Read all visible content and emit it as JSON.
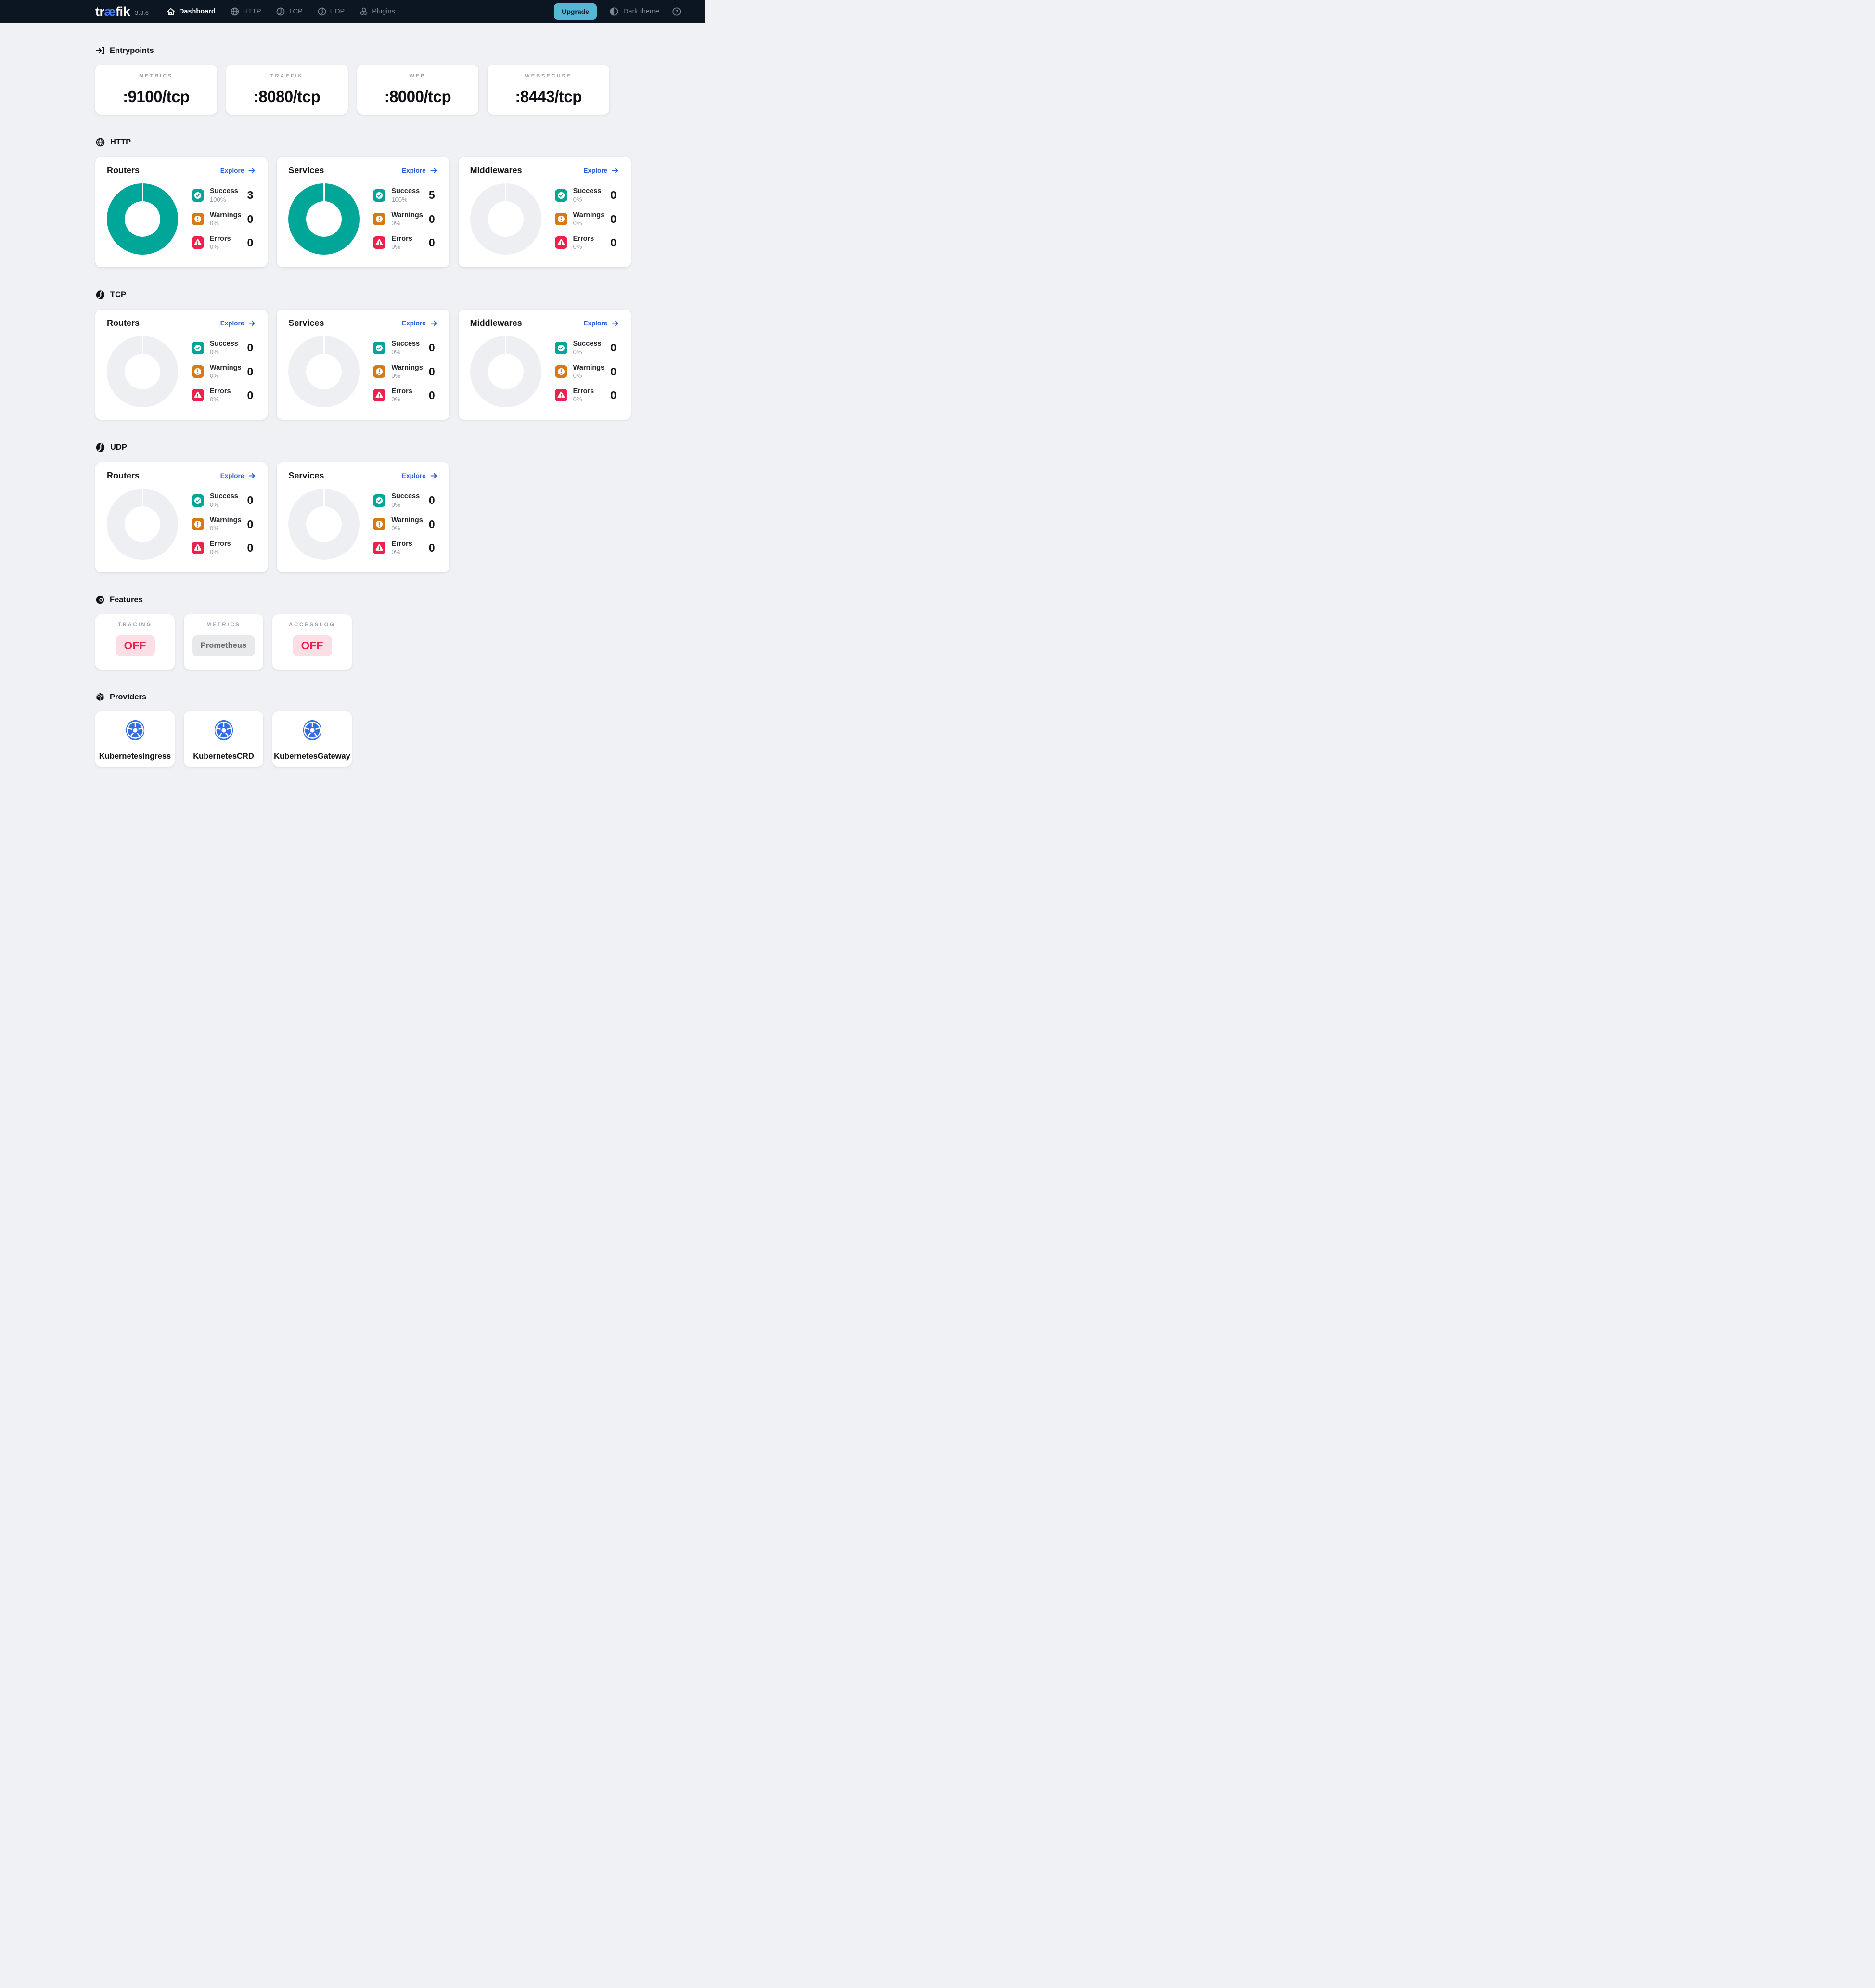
{
  "navbar": {
    "logo_part1": "tr",
    "logo_part2": "æ",
    "logo_part3": "fik",
    "version": "3.3.6",
    "items": [
      {
        "label": "Dashboard",
        "icon": "home-icon",
        "active": true
      },
      {
        "label": "HTTP",
        "icon": "globe-icon",
        "active": false
      },
      {
        "label": "TCP",
        "icon": "ball-icon",
        "active": false
      },
      {
        "label": "UDP",
        "icon": "ball-icon",
        "active": false
      },
      {
        "label": "Plugins",
        "icon": "cubes-icon",
        "active": false
      }
    ],
    "upgrade_label": "Upgrade",
    "theme_label": "Dark theme"
  },
  "entrypoints": {
    "title": "Entrypoints",
    "cards": [
      {
        "label": "METRICS",
        "value": ":9100/tcp"
      },
      {
        "label": "TRAEFIK",
        "value": ":8080/tcp"
      },
      {
        "label": "WEB",
        "value": ":8000/tcp"
      },
      {
        "label": "WEBSECURE",
        "value": ":8443/tcp"
      }
    ]
  },
  "http": {
    "title": "HTTP",
    "cards": [
      {
        "title": "Routers",
        "explore": "Explore",
        "donut": "success",
        "rows": [
          {
            "label": "Success",
            "pct": "100%",
            "value": "3"
          },
          {
            "label": "Warnings",
            "pct": "0%",
            "value": "0"
          },
          {
            "label": "Errors",
            "pct": "0%",
            "value": "0"
          }
        ]
      },
      {
        "title": "Services",
        "explore": "Explore",
        "donut": "success",
        "rows": [
          {
            "label": "Success",
            "pct": "100%",
            "value": "5"
          },
          {
            "label": "Warnings",
            "pct": "0%",
            "value": "0"
          },
          {
            "label": "Errors",
            "pct": "0%",
            "value": "0"
          }
        ]
      },
      {
        "title": "Middlewares",
        "explore": "Explore",
        "donut": "empty",
        "rows": [
          {
            "label": "Success",
            "pct": "0%",
            "value": "0"
          },
          {
            "label": "Warnings",
            "pct": "0%",
            "value": "0"
          },
          {
            "label": "Errors",
            "pct": "0%",
            "value": "0"
          }
        ]
      }
    ]
  },
  "tcp": {
    "title": "TCP",
    "cards": [
      {
        "title": "Routers",
        "explore": "Explore",
        "donut": "empty",
        "rows": [
          {
            "label": "Success",
            "pct": "0%",
            "value": "0"
          },
          {
            "label": "Warnings",
            "pct": "0%",
            "value": "0"
          },
          {
            "label": "Errors",
            "pct": "0%",
            "value": "0"
          }
        ]
      },
      {
        "title": "Services",
        "explore": "Explore",
        "donut": "empty",
        "rows": [
          {
            "label": "Success",
            "pct": "0%",
            "value": "0"
          },
          {
            "label": "Warnings",
            "pct": "0%",
            "value": "0"
          },
          {
            "label": "Errors",
            "pct": "0%",
            "value": "0"
          }
        ]
      },
      {
        "title": "Middlewares",
        "explore": "Explore",
        "donut": "empty",
        "rows": [
          {
            "label": "Success",
            "pct": "0%",
            "value": "0"
          },
          {
            "label": "Warnings",
            "pct": "0%",
            "value": "0"
          },
          {
            "label": "Errors",
            "pct": "0%",
            "value": "0"
          }
        ]
      }
    ]
  },
  "udp": {
    "title": "UDP",
    "cards": [
      {
        "title": "Routers",
        "explore": "Explore",
        "donut": "empty",
        "rows": [
          {
            "label": "Success",
            "pct": "0%",
            "value": "0"
          },
          {
            "label": "Warnings",
            "pct": "0%",
            "value": "0"
          },
          {
            "label": "Errors",
            "pct": "0%",
            "value": "0"
          }
        ]
      },
      {
        "title": "Services",
        "explore": "Explore",
        "donut": "empty",
        "rows": [
          {
            "label": "Success",
            "pct": "0%",
            "value": "0"
          },
          {
            "label": "Warnings",
            "pct": "0%",
            "value": "0"
          },
          {
            "label": "Errors",
            "pct": "0%",
            "value": "0"
          }
        ]
      }
    ]
  },
  "features": {
    "title": "Features",
    "cards": [
      {
        "label": "TRACING",
        "value": "OFF",
        "state": "off"
      },
      {
        "label": "METRICS",
        "value": "Prometheus",
        "state": "neutral"
      },
      {
        "label": "ACCESSLOG",
        "value": "OFF",
        "state": "off"
      }
    ]
  },
  "providers": {
    "title": "Providers",
    "items": [
      {
        "name": "KubernetesIngress"
      },
      {
        "name": "KubernetesCRD"
      },
      {
        "name": "KubernetesGateway"
      }
    ]
  },
  "colors": {
    "navbar_bg": "#0c1522",
    "accent_teal": "#00a697",
    "warning_orange": "#d87a12",
    "error_red": "#f0204c",
    "link_blue": "#2b5cd9",
    "kubernetes_blue": "#326de6",
    "upgrade_blue": "#55b7d4",
    "off_badge_bg": "#fcdee6"
  }
}
